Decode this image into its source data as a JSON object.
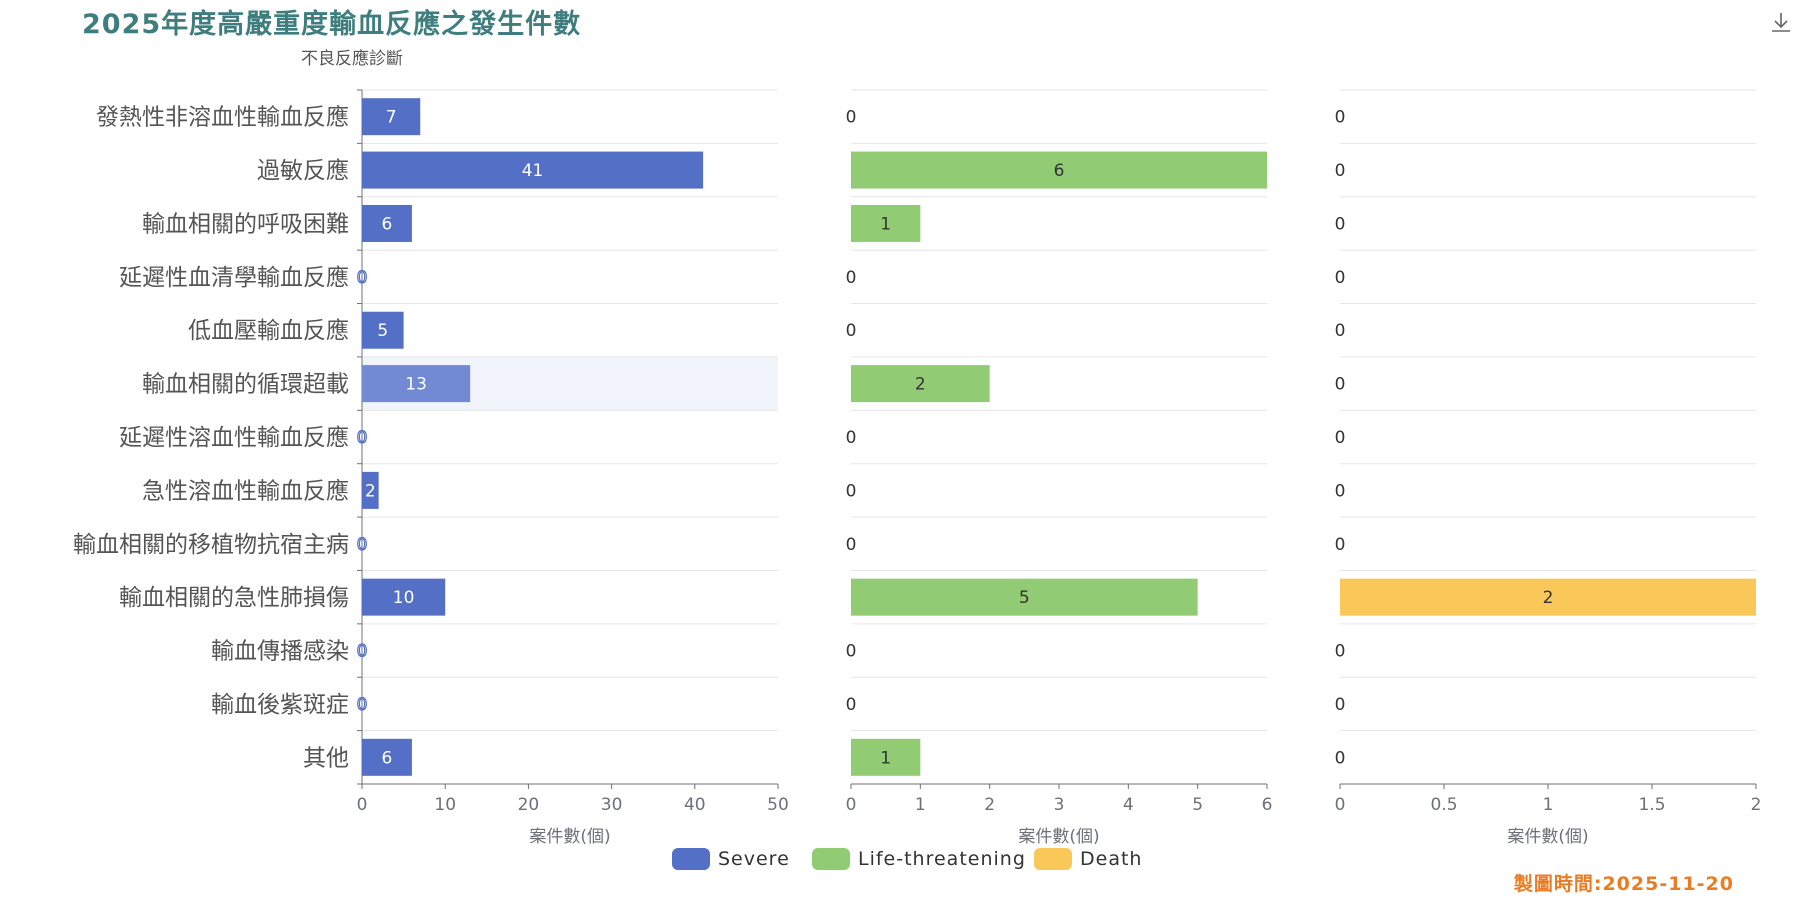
{
  "title": "2025年度高嚴重度輸血反應之發生件數",
  "y_axis_title": "不良反應診斷",
  "footer_text": "製圖時間:2025-11-20",
  "download_icon": "download-icon",
  "chart_data": {
    "type": "bar",
    "orientation": "horizontal",
    "categories": [
      "發熱性非溶血性輸血反應",
      "過敏反應",
      "輸血相關的呼吸困難",
      "延遲性血清學輸血反應",
      "低血壓輸血反應",
      "輸血相關的循環超載",
      "延遲性溶血性輸血反應",
      "急性溶血性輸血反應",
      "輸血相關的移植物抗宿主病",
      "輸血相關的急性肺損傷",
      "輸血傳播感染",
      "輸血後紫斑症",
      "其他"
    ],
    "series": [
      {
        "name": "Severe",
        "color": "#5470c6",
        "values": [
          7,
          41,
          6,
          0,
          5,
          13,
          0,
          2,
          0,
          10,
          0,
          0,
          6
        ],
        "xlabel": "案件數(個)",
        "xlim": [
          0,
          50
        ],
        "ticks": [
          "0",
          "10",
          "20",
          "30",
          "40",
          "50"
        ]
      },
      {
        "name": "Life-threatening",
        "color": "#91cc75",
        "values": [
          0,
          6,
          1,
          0,
          0,
          2,
          0,
          0,
          0,
          5,
          0,
          0,
          1
        ],
        "xlabel": "案件數(個)",
        "xlim": [
          0,
          6
        ],
        "ticks": [
          "0",
          "1",
          "2",
          "3",
          "4",
          "5",
          "6"
        ]
      },
      {
        "name": "Death",
        "color": "#fac858",
        "values": [
          0,
          0,
          0,
          0,
          0,
          0,
          0,
          0,
          0,
          2,
          0,
          0,
          0
        ],
        "xlabel": "案件數(個)",
        "xlim": [
          0,
          2
        ],
        "ticks": [
          "0",
          "0.5",
          "1",
          "1.5",
          "2"
        ]
      }
    ],
    "highlighted_category": "輸血相關的循環超載",
    "grid": true,
    "legend_position": "bottom-center"
  }
}
